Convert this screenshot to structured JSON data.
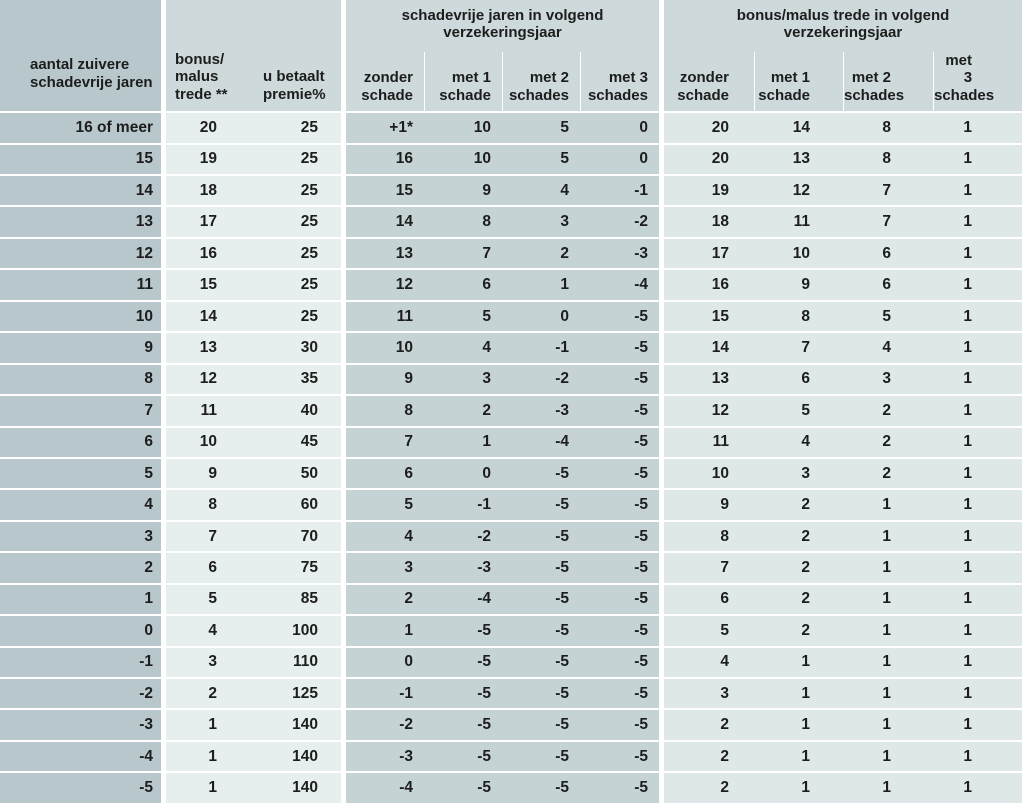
{
  "colors": {
    "col1_bg": "#b8c7cb",
    "group_header_bg": "#cdd9da",
    "group2_data_bg": "#e7eeee",
    "group3_data_bg": "#c6d3d5",
    "group4_data_bg": "#dfe8e9",
    "separator": "#ffffff",
    "text": "#1d1d1d"
  },
  "table": {
    "col1_header": "aantal zuivere\nschadevrije jaren",
    "group2_col_headers": [
      "bonus/\nmalus\ntrede **",
      "u betaalt\npremie%"
    ],
    "group3_title": "schadevrije jaren in volgend\nverzekeringsjaar",
    "group4_title": "bonus/malus trede in volgend\nverzekeringsjaar",
    "sub_headers": [
      "zonder\nschade",
      "met 1\nschade",
      "met 2\nschades",
      "met 3\nschades"
    ],
    "rows": [
      [
        "16 of meer",
        "20",
        "25",
        "+1*",
        "10",
        "5",
        "0",
        "20",
        "14",
        "8",
        "1"
      ],
      [
        "15",
        "19",
        "25",
        "16",
        "10",
        "5",
        "0",
        "20",
        "13",
        "8",
        "1"
      ],
      [
        "14",
        "18",
        "25",
        "15",
        "9",
        "4",
        "-1",
        "19",
        "12",
        "7",
        "1"
      ],
      [
        "13",
        "17",
        "25",
        "14",
        "8",
        "3",
        "-2",
        "18",
        "11",
        "7",
        "1"
      ],
      [
        "12",
        "16",
        "25",
        "13",
        "7",
        "2",
        "-3",
        "17",
        "10",
        "6",
        "1"
      ],
      [
        "11",
        "15",
        "25",
        "12",
        "6",
        "1",
        "-4",
        "16",
        "9",
        "6",
        "1"
      ],
      [
        "10",
        "14",
        "25",
        "11",
        "5",
        "0",
        "-5",
        "15",
        "8",
        "5",
        "1"
      ],
      [
        "9",
        "13",
        "30",
        "10",
        "4",
        "-1",
        "-5",
        "14",
        "7",
        "4",
        "1"
      ],
      [
        "8",
        "12",
        "35",
        "9",
        "3",
        "-2",
        "-5",
        "13",
        "6",
        "3",
        "1"
      ],
      [
        "7",
        "11",
        "40",
        "8",
        "2",
        "-3",
        "-5",
        "12",
        "5",
        "2",
        "1"
      ],
      [
        "6",
        "10",
        "45",
        "7",
        "1",
        "-4",
        "-5",
        "11",
        "4",
        "2",
        "1"
      ],
      [
        "5",
        "9",
        "50",
        "6",
        "0",
        "-5",
        "-5",
        "10",
        "3",
        "2",
        "1"
      ],
      [
        "4",
        "8",
        "60",
        "5",
        "-1",
        "-5",
        "-5",
        "9",
        "2",
        "1",
        "1"
      ],
      [
        "3",
        "7",
        "70",
        "4",
        "-2",
        "-5",
        "-5",
        "8",
        "2",
        "1",
        "1"
      ],
      [
        "2",
        "6",
        "75",
        "3",
        "-3",
        "-5",
        "-5",
        "7",
        "2",
        "1",
        "1"
      ],
      [
        "1",
        "5",
        "85",
        "2",
        "-4",
        "-5",
        "-5",
        "6",
        "2",
        "1",
        "1"
      ],
      [
        "0",
        "4",
        "100",
        "1",
        "-5",
        "-5",
        "-5",
        "5",
        "2",
        "1",
        "1"
      ],
      [
        "-1",
        "3",
        "110",
        "0",
        "-5",
        "-5",
        "-5",
        "4",
        "1",
        "1",
        "1"
      ],
      [
        "-2",
        "2",
        "125",
        "-1",
        "-5",
        "-5",
        "-5",
        "3",
        "1",
        "1",
        "1"
      ],
      [
        "-3",
        "1",
        "140",
        "-2",
        "-5",
        "-5",
        "-5",
        "2",
        "1",
        "1",
        "1"
      ],
      [
        "-4",
        "1",
        "140",
        "-3",
        "-5",
        "-5",
        "-5",
        "2",
        "1",
        "1",
        "1"
      ],
      [
        "-5",
        "1",
        "140",
        "-4",
        "-5",
        "-5",
        "-5",
        "2",
        "1",
        "1",
        "1"
      ]
    ]
  }
}
